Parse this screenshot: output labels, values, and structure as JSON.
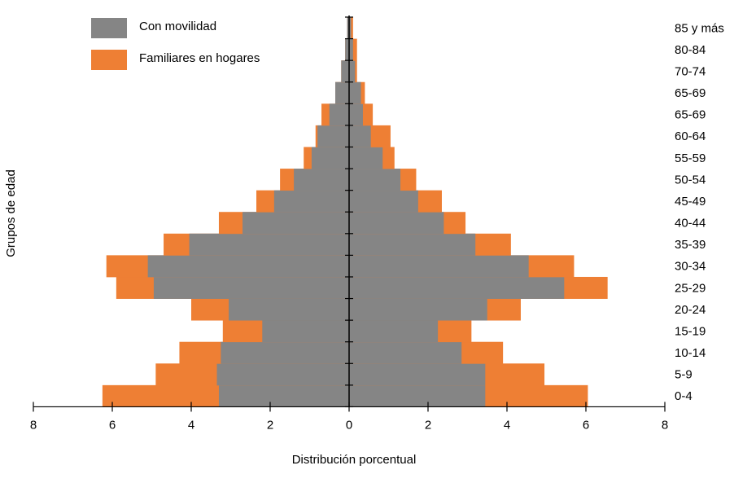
{
  "chart_data": {
    "type": "bar",
    "orientation": "horizontal",
    "subtype": "population-pyramid",
    "title": "",
    "xlabel": "Distribución porcentual",
    "ylabel": "Grupos de edad",
    "xlim": [
      -8,
      8
    ],
    "x_ticks": [
      -8,
      -6,
      -4,
      -2,
      0,
      2,
      4,
      6,
      8
    ],
    "x_tick_labels": [
      "8",
      "6",
      "4",
      "2",
      "0",
      "2",
      "4",
      "6",
      "8"
    ],
    "grid": false,
    "legend_position": "top-left",
    "categories": [
      "0-4",
      "5-9",
      "10-14",
      "15-19",
      "20-24",
      "25-29",
      "30-34",
      "35-39",
      "40-44",
      "45-49",
      "50-54",
      "55-59",
      "60-64",
      "65-69",
      "65-69",
      "70-74",
      "80-84",
      "85 y más"
    ],
    "series": [
      {
        "name": "Con movilidad",
        "color": "#858585",
        "left": [
          3.3,
          3.35,
          3.25,
          2.2,
          3.05,
          4.95,
          5.1,
          4.05,
          2.7,
          1.9,
          1.4,
          0.95,
          0.8,
          0.5,
          0.35,
          0.2,
          0.1,
          0.05
        ],
        "right": [
          3.45,
          3.45,
          2.85,
          2.25,
          3.5,
          5.45,
          4.55,
          3.2,
          2.4,
          1.75,
          1.3,
          0.85,
          0.55,
          0.35,
          0.3,
          0.15,
          0.1,
          0.05
        ]
      },
      {
        "name": "Familiares en hogares",
        "color": "#ee7f34",
        "left": [
          6.25,
          4.9,
          4.3,
          3.2,
          4.0,
          5.9,
          6.15,
          4.7,
          3.3,
          2.35,
          1.75,
          1.15,
          0.85,
          0.7,
          0.35,
          0.2,
          0.1,
          0.05
        ],
        "right": [
          6.05,
          4.95,
          3.9,
          3.1,
          4.35,
          6.55,
          5.7,
          4.1,
          2.95,
          2.35,
          1.7,
          1.15,
          1.05,
          0.6,
          0.4,
          0.2,
          0.2,
          0.1
        ]
      }
    ]
  }
}
